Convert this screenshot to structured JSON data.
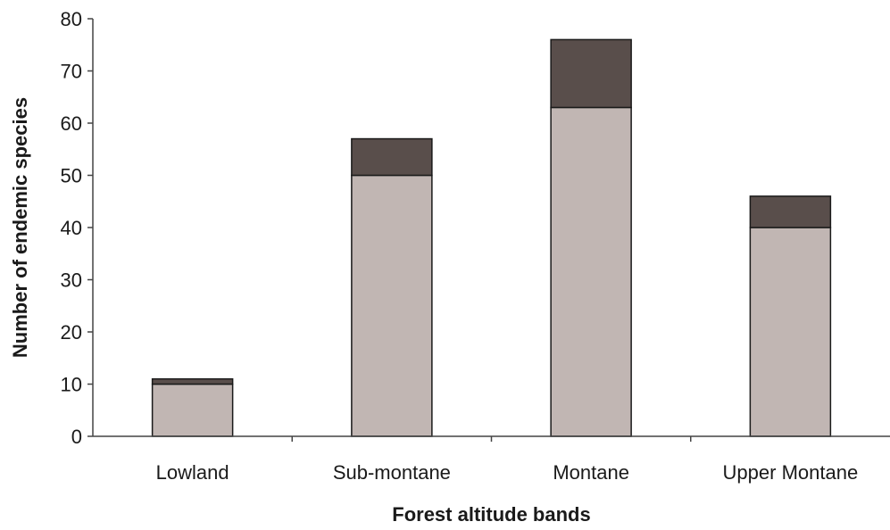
{
  "chart_data": {
    "type": "bar",
    "stacked": true,
    "categories": [
      "Lowland",
      "Sub-montane",
      "Montane",
      "Upper Montane"
    ],
    "series": [
      {
        "values": [
          10,
          50,
          63,
          40
        ],
        "color": "#c1b6b3"
      },
      {
        "values": [
          1,
          7,
          13,
          6
        ],
        "color": "#594e4b"
      }
    ],
    "title": "",
    "xlabel": "Forest altitude bands",
    "ylabel": "Number of endemic species",
    "ylim": [
      0,
      80
    ],
    "yticks": [
      0,
      10,
      20,
      30,
      40,
      50,
      60,
      70,
      80
    ],
    "grid": false,
    "legend": "none"
  }
}
